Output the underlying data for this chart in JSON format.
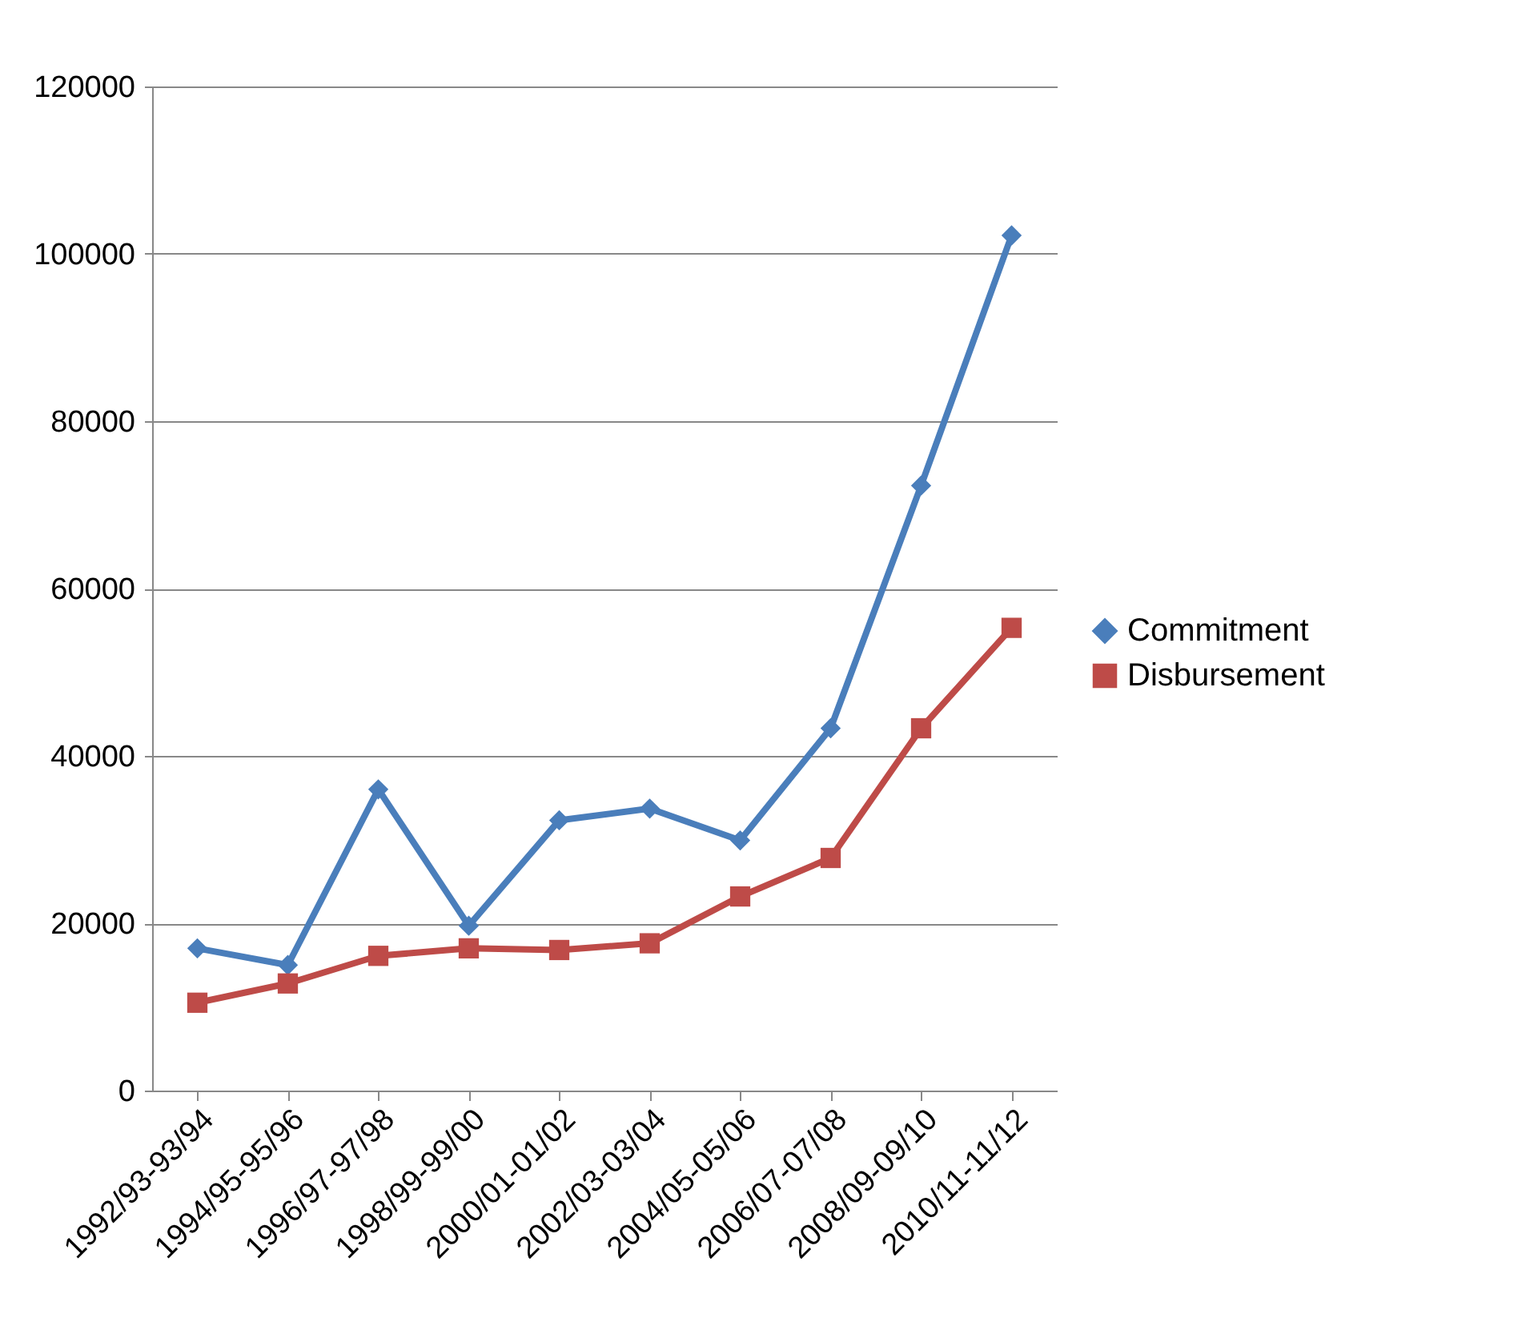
{
  "chart_data": {
    "type": "line",
    "categories": [
      "1992/93-93/94",
      "1994/95-95/96",
      "1996/97-97/98",
      "1998/99-99/00",
      "2000/01-01/02",
      "2002/03-03/04",
      "2004/05-05/06",
      "2006/07-07/08",
      "2008/09-09/10",
      "2010/11-11/12"
    ],
    "series": [
      {
        "name": "Commitment",
        "color": "#4a7ebb",
        "marker": "diamond",
        "values": [
          17000,
          15000,
          36000,
          19700,
          32300,
          33700,
          29900,
          43300,
          72300,
          102200
        ]
      },
      {
        "name": "Disbursement",
        "color": "#be4b48",
        "marker": "square",
        "values": [
          10500,
          12800,
          16100,
          17000,
          16800,
          17600,
          23200,
          27800,
          43300,
          55300
        ]
      }
    ],
    "ylim": [
      0,
      120000
    ],
    "yticks": [
      0,
      20000,
      40000,
      60000,
      80000,
      100000,
      120000
    ],
    "grid": "y",
    "legend": "right",
    "line_style": "solid"
  }
}
